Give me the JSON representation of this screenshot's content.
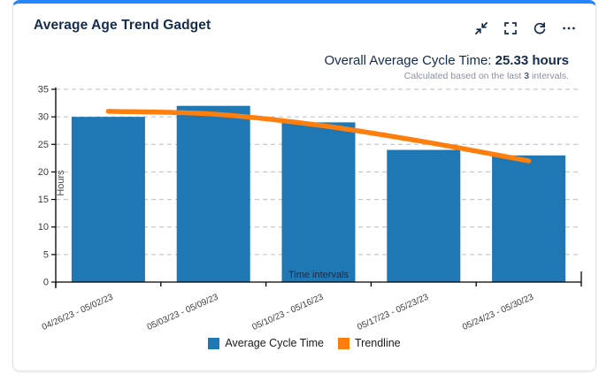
{
  "card": {
    "title": "Average Age Trend Gadget",
    "accent_color": "#2684ff",
    "header_icons": [
      {
        "name": "collapse-icon"
      },
      {
        "name": "fullscreen-icon"
      },
      {
        "name": "refresh-icon"
      },
      {
        "name": "more-options-icon"
      }
    ]
  },
  "summary": {
    "label": "Overall Average Cycle Time: ",
    "value": "25.33 hours",
    "note_prefix": "Calculated based on the last ",
    "note_bold": "3",
    "note_suffix": " intervals."
  },
  "chart_data": {
    "type": "bar",
    "title": "",
    "categories": [
      "04/26/23 - 05/02/23",
      "05/03/23 - 05/09/23",
      "05/10/23 - 05/16/23",
      "05/17/23 - 05/23/23",
      "05/24/23 - 05/30/23"
    ],
    "series": [
      {
        "name": "Average Cycle Time",
        "type": "bar",
        "color": "#1f77b4",
        "values": [
          30,
          32,
          29,
          24,
          23
        ]
      },
      {
        "name": "Trendline",
        "type": "line",
        "color": "#ff7f0e",
        "values": [
          31,
          30.5,
          28.5,
          25.5,
          22
        ]
      }
    ],
    "xlabel": "Time intervals",
    "ylabel": "Hours",
    "ylim": [
      0,
      35
    ],
    "yticks": [
      0,
      5,
      10,
      15,
      20,
      25,
      30,
      35
    ],
    "grid": "horizontal-dashed",
    "legend_position": "bottom",
    "colors": {
      "axis": "#000000",
      "gridline": "#bdbdbd",
      "tick_label": "#3c3c3c",
      "axis_title": "#4a4a4a",
      "x_title": "#1c2b42"
    }
  }
}
